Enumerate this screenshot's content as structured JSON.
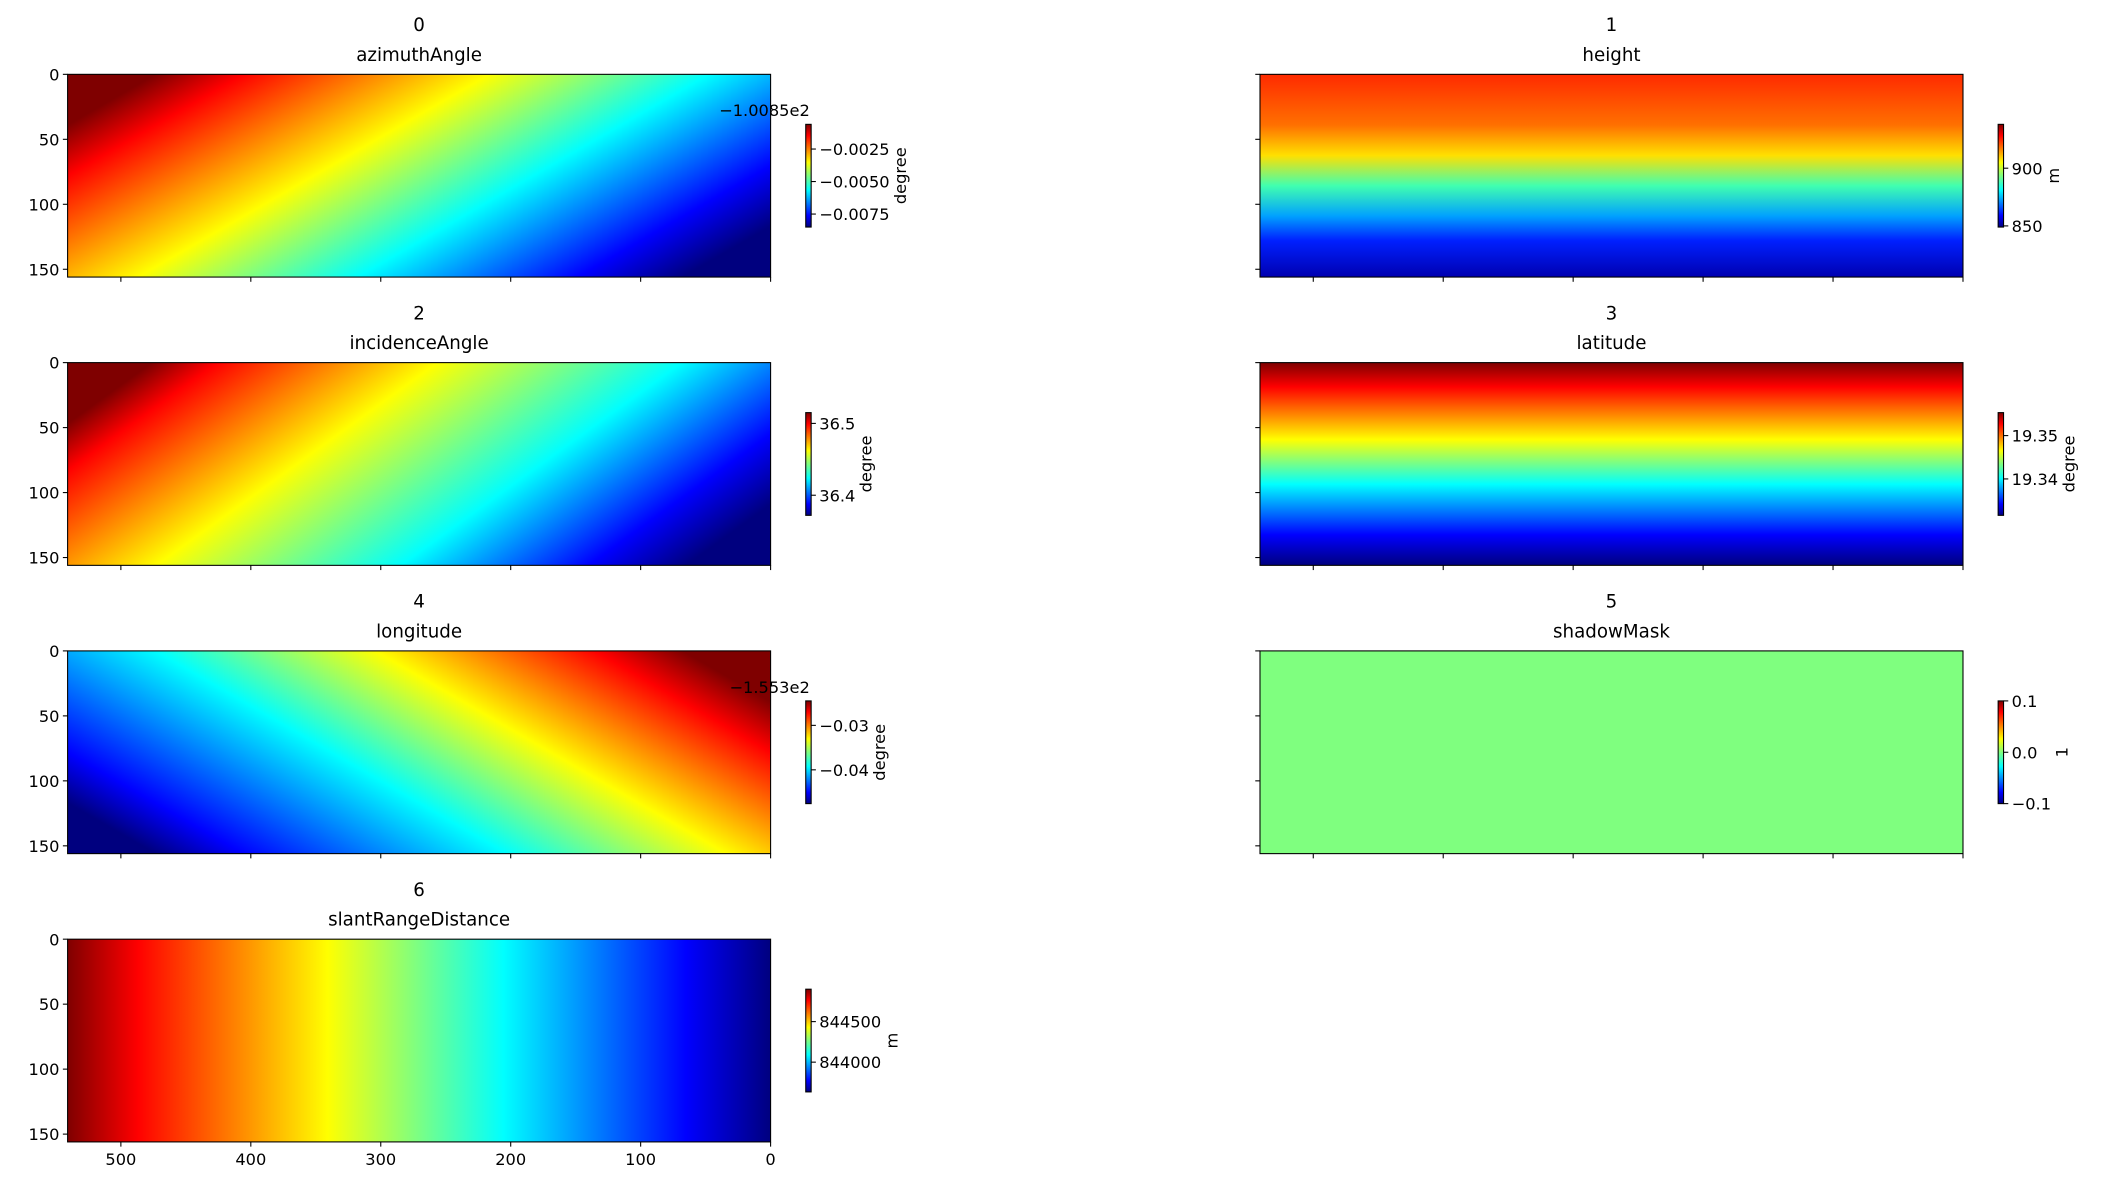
{
  "chart_data": [
    {
      "type": "heatmap",
      "label": "0",
      "title": "azimuthAngle",
      "colormap": "jet",
      "xlim": [
        541,
        0
      ],
      "xticks": [
        500,
        400,
        300,
        200,
        100,
        0
      ],
      "ylim": [
        156,
        0
      ],
      "yticks": [
        0,
        50,
        100,
        150
      ],
      "xticklabels": false,
      "yticklabels": true,
      "colorbar": {
        "label": "degree",
        "offset_text": "−1.0085e2",
        "lim": [
          -0.0085,
          -0.0006
        ],
        "ticks": [
          {
            "value": -0.0025,
            "label": "−0.0025"
          },
          {
            "value": -0.005,
            "label": "−0.0050"
          },
          {
            "value": -0.0075,
            "label": "−0.0075"
          }
        ]
      }
    },
    {
      "type": "heatmap",
      "label": "1",
      "title": "height",
      "colormap": "jet",
      "xlim": [
        541,
        0
      ],
      "xticks": [
        500,
        400,
        300,
        200,
        100,
        0
      ],
      "ylim": [
        156,
        0
      ],
      "yticks": [
        0,
        50,
        100,
        150
      ],
      "xticklabels": false,
      "yticklabels": false,
      "colorbar": {
        "label": "m",
        "lim": [
          849,
          938
        ],
        "ticks": [
          900,
          850
        ]
      }
    },
    {
      "type": "heatmap",
      "label": "2",
      "title": "incidenceAngle",
      "colormap": "jet",
      "xlim": [
        541,
        0
      ],
      "xticks": [
        500,
        400,
        300,
        200,
        100,
        0
      ],
      "ylim": [
        156,
        0
      ],
      "yticks": [
        0,
        50,
        100,
        150
      ],
      "xticklabels": false,
      "yticklabels": true,
      "colorbar": {
        "label": "degree",
        "lim": [
          36.372,
          36.515
        ],
        "ticks": [
          36.5,
          36.4
        ]
      }
    },
    {
      "type": "heatmap",
      "label": "3",
      "title": "latitude",
      "colormap": "jet",
      "xlim": [
        541,
        0
      ],
      "xticks": [
        500,
        400,
        300,
        200,
        100,
        0
      ],
      "ylim": [
        156,
        0
      ],
      "yticks": [
        0,
        50,
        100,
        150
      ],
      "xticklabels": false,
      "yticklabels": false,
      "colorbar": {
        "label": "degree",
        "lim": [
          19.3316,
          19.3553
        ],
        "ticks": [
          19.35,
          19.34
        ]
      }
    },
    {
      "type": "heatmap",
      "label": "4",
      "title": "longitude",
      "colormap": "jet",
      "xlim": [
        541,
        0
      ],
      "xticks": [
        500,
        400,
        300,
        200,
        100,
        0
      ],
      "ylim": [
        156,
        0
      ],
      "yticks": [
        0,
        50,
        100,
        150
      ],
      "xticklabels": false,
      "yticklabels": true,
      "colorbar": {
        "label": "degree",
        "offset_text": "−1.553e2",
        "lim": [
          -0.0476,
          -0.0245
        ],
        "ticks": [
          {
            "value": -0.03,
            "label": "−0.03"
          },
          {
            "value": -0.04,
            "label": "−0.04"
          }
        ]
      }
    },
    {
      "type": "heatmap",
      "label": "5",
      "title": "shadowMask",
      "colormap": "jet",
      "xlim": [
        541,
        0
      ],
      "xticks": [
        500,
        400,
        300,
        200,
        100,
        0
      ],
      "ylim": [
        156,
        0
      ],
      "yticks": [
        0,
        50,
        100,
        150
      ],
      "xticklabels": false,
      "yticklabels": false,
      "colorbar": {
        "label": "1",
        "lim": [
          -0.1,
          0.1
        ],
        "ticks": [
          0.1,
          {
            "value": 0,
            "label": "0.0"
          },
          {
            "value": -0.1,
            "label": "−0.1"
          }
        ]
      }
    },
    {
      "type": "heatmap",
      "label": "6",
      "title": "slantRangeDistance",
      "colormap": "jet",
      "xlim": [
        541,
        0
      ],
      "xticks": [
        500,
        400,
        300,
        200,
        100,
        0
      ],
      "ylim": [
        156,
        0
      ],
      "yticks": [
        0,
        50,
        100,
        150
      ],
      "xticklabels": true,
      "yticklabels": true,
      "colorbar": {
        "label": "m",
        "lim": [
          843633,
          844900
        ],
        "ticks": [
          844500,
          844000
        ]
      }
    }
  ]
}
